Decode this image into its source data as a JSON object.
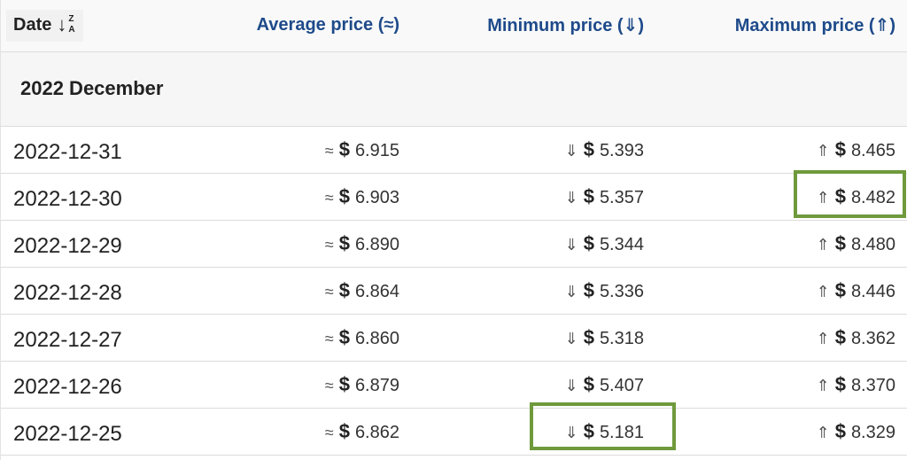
{
  "columns": {
    "date": "Date",
    "average": "Average price (≈)",
    "minimum": "Minimum price (⇓)",
    "maximum": "Maximum price (⇑)"
  },
  "group_label": "2022 December",
  "symbols": {
    "approx": "≈",
    "down": "⇓",
    "up": "⇑",
    "currency": "$"
  },
  "rows": [
    {
      "date": "2022-12-31",
      "avg": "6.915",
      "min": "5.393",
      "max": "8.465"
    },
    {
      "date": "2022-12-30",
      "avg": "6.903",
      "min": "5.357",
      "max": "8.482"
    },
    {
      "date": "2022-12-29",
      "avg": "6.890",
      "min": "5.344",
      "max": "8.480"
    },
    {
      "date": "2022-12-28",
      "avg": "6.864",
      "min": "5.336",
      "max": "8.446"
    },
    {
      "date": "2022-12-27",
      "avg": "6.860",
      "min": "5.318",
      "max": "8.362"
    },
    {
      "date": "2022-12-26",
      "avg": "6.879",
      "min": "5.407",
      "max": "8.370"
    },
    {
      "date": "2022-12-25",
      "avg": "6.862",
      "min": "5.181",
      "max": "8.329"
    }
  ],
  "highlight_color": "#6f9a3c",
  "header_color": "#1e4a8a"
}
